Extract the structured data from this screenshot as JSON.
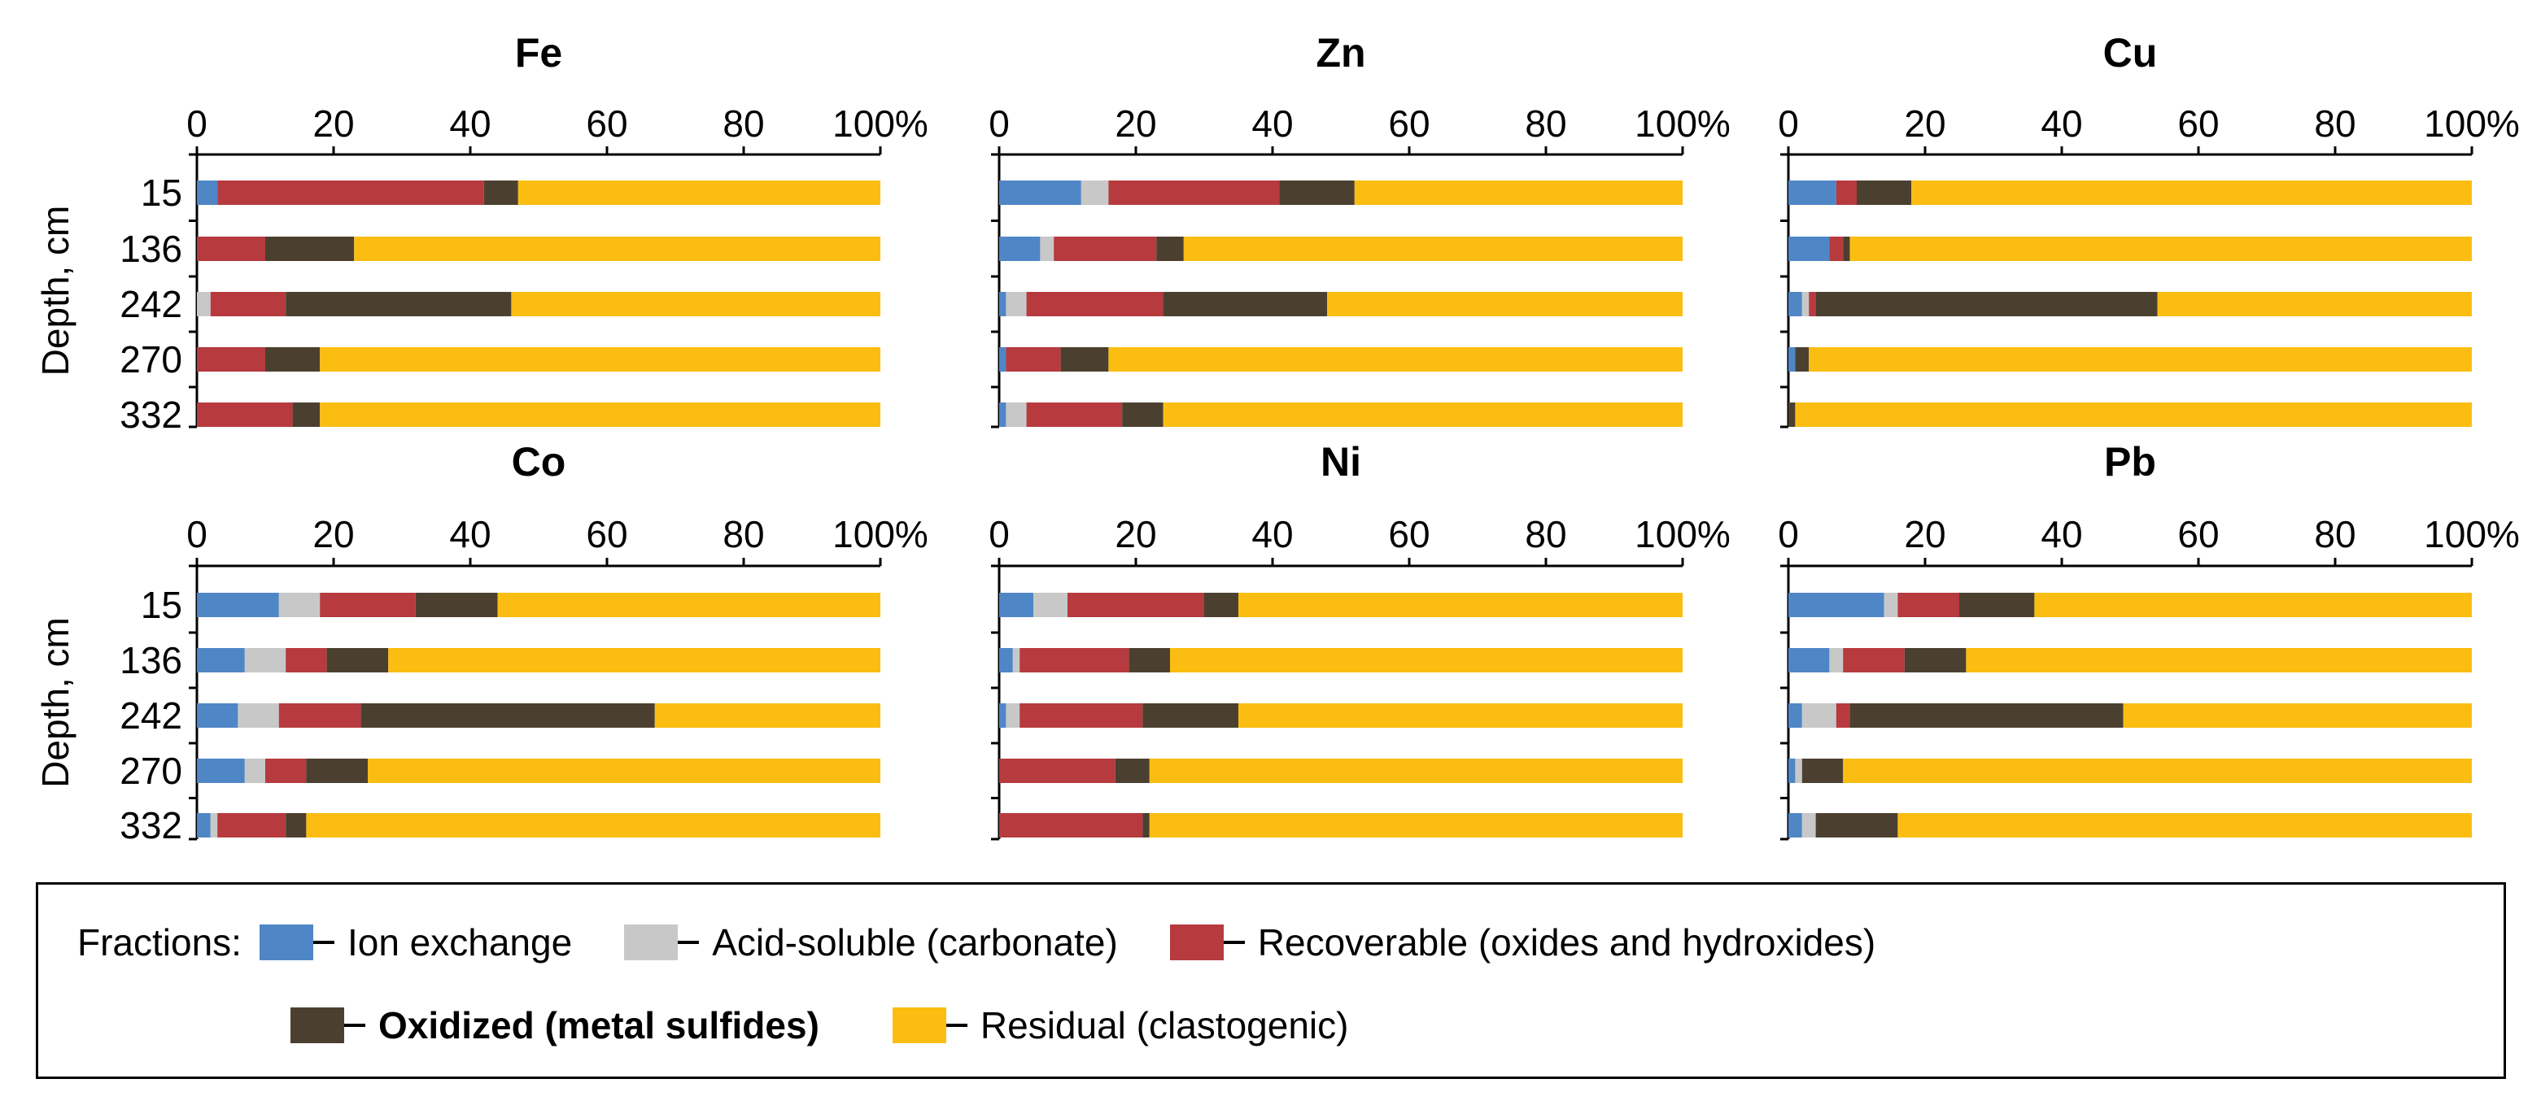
{
  "figure": {
    "depth_axis_label": "Depth, cm",
    "depths": [
      "15",
      "136",
      "242",
      "270",
      "332"
    ],
    "tick_labels": [
      "0",
      "20",
      "40",
      "60",
      "80",
      "100%"
    ]
  },
  "colors": {
    "ion_exchange": "#4f86c6",
    "acid_soluble": "#c8c8c8",
    "recoverable": "#b63a3e",
    "oxidized": "#4b4030",
    "residual": "#fbbd11"
  },
  "legend": {
    "title": "Fractions:",
    "items": [
      {
        "key": "ion_exchange",
        "label": "Ion exchange"
      },
      {
        "key": "acid_soluble",
        "label": "Acid-soluble (carbonate)"
      },
      {
        "key": "recoverable",
        "label": "Recoverable (oxides and hydroxides)"
      },
      {
        "key": "oxidized",
        "label": "Oxidized (metal sulfides)"
      },
      {
        "key": "residual",
        "label": "Residual (clastogenic)"
      }
    ]
  },
  "chart_data": [
    {
      "type": "bar",
      "orientation": "horizontal",
      "stacked": true,
      "title": "Fe",
      "xlim": [
        0,
        100
      ],
      "xlabel": "",
      "ylabel": "Depth, cm",
      "categories": [
        "15",
        "136",
        "242",
        "270",
        "332"
      ],
      "series": [
        {
          "name": "Ion exchange",
          "values": [
            3,
            0,
            0,
            0,
            0
          ]
        },
        {
          "name": "Acid-soluble (carbonate)",
          "values": [
            0,
            0,
            2,
            0,
            0
          ]
        },
        {
          "name": "Recoverable (oxides and hydroxides)",
          "values": [
            39,
            10,
            11,
            10,
            14
          ]
        },
        {
          "name": "Oxidized (metal sulfides)",
          "values": [
            5,
            13,
            33,
            8,
            4
          ]
        },
        {
          "name": "Residual (clastogenic)",
          "values": [
            53,
            77,
            54,
            82,
            82
          ]
        }
      ]
    },
    {
      "type": "bar",
      "orientation": "horizontal",
      "stacked": true,
      "title": "Zn",
      "xlim": [
        0,
        100
      ],
      "xlabel": "",
      "ylabel": "",
      "categories": [
        "15",
        "136",
        "242",
        "270",
        "332"
      ],
      "series": [
        {
          "name": "Ion exchange",
          "values": [
            12,
            6,
            1,
            1,
            1
          ]
        },
        {
          "name": "Acid-soluble (carbonate)",
          "values": [
            4,
            2,
            3,
            0,
            3
          ]
        },
        {
          "name": "Recoverable (oxides and hydroxides)",
          "values": [
            25,
            15,
            20,
            8,
            14
          ]
        },
        {
          "name": "Oxidized (metal sulfides)",
          "values": [
            11,
            4,
            24,
            7,
            6
          ]
        },
        {
          "name": "Residual (clastogenic)",
          "values": [
            48,
            73,
            52,
            84,
            76
          ]
        }
      ]
    },
    {
      "type": "bar",
      "orientation": "horizontal",
      "stacked": true,
      "title": "Cu",
      "xlim": [
        0,
        100
      ],
      "xlabel": "",
      "ylabel": "",
      "categories": [
        "15",
        "136",
        "242",
        "270",
        "332"
      ],
      "series": [
        {
          "name": "Ion exchange",
          "values": [
            7,
            6,
            2,
            1,
            0
          ]
        },
        {
          "name": "Acid-soluble (carbonate)",
          "values": [
            0,
            0,
            1,
            0,
            0
          ]
        },
        {
          "name": "Recoverable (oxides and hydroxides)",
          "values": [
            3,
            2,
            1,
            0,
            0
          ]
        },
        {
          "name": "Oxidized (metal sulfides)",
          "values": [
            8,
            1,
            50,
            2,
            1
          ]
        },
        {
          "name": "Residual (clastogenic)",
          "values": [
            82,
            91,
            46,
            97,
            99
          ]
        }
      ]
    },
    {
      "type": "bar",
      "orientation": "horizontal",
      "stacked": true,
      "title": "Co",
      "xlim": [
        0,
        100
      ],
      "xlabel": "",
      "ylabel": "Depth, cm",
      "categories": [
        "15",
        "136",
        "242",
        "270",
        "332"
      ],
      "series": [
        {
          "name": "Ion exchange",
          "values": [
            12,
            7,
            6,
            7,
            2
          ]
        },
        {
          "name": "Acid-soluble (carbonate)",
          "values": [
            6,
            6,
            6,
            3,
            1
          ]
        },
        {
          "name": "Recoverable (oxides and hydroxides)",
          "values": [
            14,
            6,
            12,
            6,
            10
          ]
        },
        {
          "name": "Oxidized (metal sulfides)",
          "values": [
            12,
            9,
            43,
            9,
            3
          ]
        },
        {
          "name": "Residual (clastogenic)",
          "values": [
            56,
            72,
            33,
            75,
            84
          ]
        }
      ]
    },
    {
      "type": "bar",
      "orientation": "horizontal",
      "stacked": true,
      "title": "Ni",
      "xlim": [
        0,
        100
      ],
      "xlabel": "",
      "ylabel": "",
      "categories": [
        "15",
        "136",
        "242",
        "270",
        "332"
      ],
      "series": [
        {
          "name": "Ion exchange",
          "values": [
            5,
            2,
            1,
            0,
            0
          ]
        },
        {
          "name": "Acid-soluble (carbonate)",
          "values": [
            5,
            1,
            2,
            0,
            0
          ]
        },
        {
          "name": "Recoverable (oxides and hydroxides)",
          "values": [
            20,
            16,
            18,
            17,
            21
          ]
        },
        {
          "name": "Oxidized (metal sulfides)",
          "values": [
            5,
            6,
            14,
            5,
            1
          ]
        },
        {
          "name": "Residual (clastogenic)",
          "values": [
            65,
            75,
            65,
            78,
            78
          ]
        }
      ]
    },
    {
      "type": "bar",
      "orientation": "horizontal",
      "stacked": true,
      "title": "Pb",
      "xlim": [
        0,
        100
      ],
      "xlabel": "",
      "ylabel": "",
      "categories": [
        "15",
        "136",
        "242",
        "270",
        "332"
      ],
      "series": [
        {
          "name": "Ion exchange",
          "values": [
            14,
            6,
            2,
            1,
            2
          ]
        },
        {
          "name": "Acid-soluble (carbonate)",
          "values": [
            2,
            2,
            5,
            1,
            2
          ]
        },
        {
          "name": "Recoverable (oxides and hydroxides)",
          "values": [
            9,
            9,
            2,
            0,
            0
          ]
        },
        {
          "name": "Oxidized (metal sulfides)",
          "values": [
            11,
            9,
            40,
            6,
            12
          ]
        },
        {
          "name": "Residual (clastogenic)",
          "values": [
            64,
            74,
            51,
            92,
            84
          ]
        }
      ]
    }
  ]
}
